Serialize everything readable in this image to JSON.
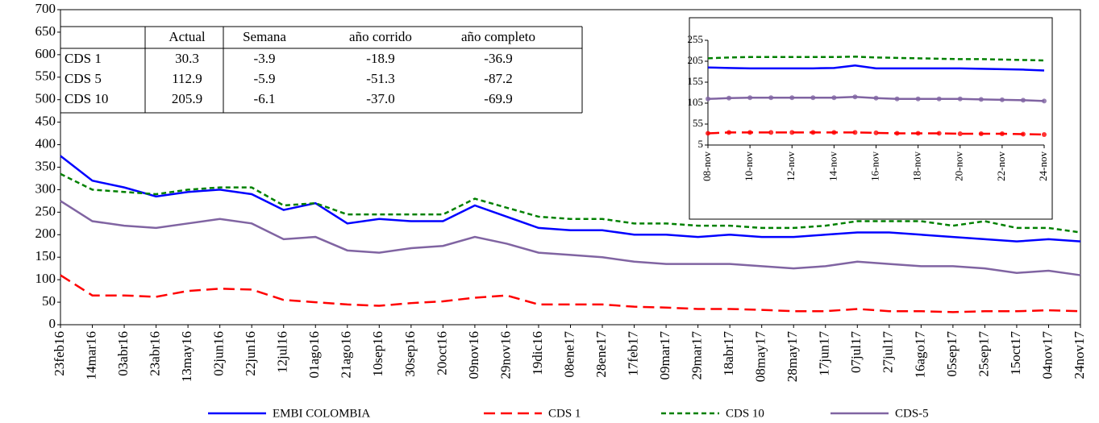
{
  "chart_data": [
    {
      "type": "line",
      "categories": [
        "23feb16",
        "14mar16",
        "03abr16",
        "23abr16",
        "13may16",
        "02jun16",
        "22jun16",
        "12jul16",
        "01ago16",
        "21ago16",
        "10sep16",
        "30sep16",
        "20oct16",
        "09nov16",
        "29nov16",
        "19dic16",
        "08ene17",
        "28ene17",
        "17feb17",
        "09mar17",
        "29mar17",
        "18abr17",
        "08may17",
        "28may17",
        "17jun17",
        "07jul17",
        "27jul17",
        "16ago17",
        "05sep17",
        "25sep17",
        "15oct17",
        "04nov17",
        "24nov17"
      ],
      "ylim": [
        0,
        700
      ],
      "yticks": [
        0,
        50,
        100,
        150,
        200,
        250,
        300,
        350,
        400,
        450,
        500,
        550,
        600,
        650,
        700
      ],
      "legend": "bottom",
      "series": [
        {
          "name": "EMBI COLOMBIA",
          "color": "#0000ff",
          "line_style": "solid",
          "values": [
            375,
            320,
            305,
            285,
            295,
            300,
            290,
            255,
            270,
            225,
            235,
            230,
            230,
            265,
            240,
            215,
            210,
            210,
            200,
            200,
            195,
            200,
            195,
            195,
            200,
            205,
            205,
            200,
            195,
            190,
            185,
            190,
            185
          ]
        },
        {
          "name": "CDS 1",
          "color": "#ff0000",
          "line_style": "long-dash",
          "values": [
            110,
            65,
            65,
            62,
            75,
            80,
            78,
            55,
            50,
            45,
            42,
            48,
            52,
            60,
            65,
            45,
            45,
            45,
            40,
            38,
            35,
            35,
            33,
            30,
            30,
            35,
            30,
            30,
            28,
            30,
            30,
            32,
            30
          ]
        },
        {
          "name": "CDS 10",
          "color": "#008000",
          "line_style": "short-dash",
          "values": [
            335,
            300,
            295,
            290,
            300,
            305,
            305,
            265,
            270,
            245,
            245,
            245,
            245,
            280,
            260,
            240,
            235,
            235,
            225,
            225,
            220,
            220,
            215,
            215,
            220,
            230,
            230,
            230,
            220,
            230,
            215,
            215,
            205
          ]
        },
        {
          "name": "CDS-5",
          "color": "#8064a2",
          "line_style": "solid",
          "values": [
            275,
            230,
            220,
            215,
            225,
            235,
            225,
            190,
            195,
            165,
            160,
            170,
            175,
            195,
            180,
            160,
            155,
            150,
            140,
            135,
            135,
            135,
            130,
            125,
            130,
            140,
            135,
            130,
            130,
            125,
            115,
            120,
            110
          ]
        }
      ]
    },
    {
      "type": "line",
      "categories": [
        "08-nov",
        null,
        "10-nov",
        null,
        "12-nov",
        null,
        "14-nov",
        null,
        "16-nov",
        null,
        "18-nov",
        null,
        "20-nov",
        null,
        "22-nov",
        null,
        "24-nov"
      ],
      "ylim": [
        5,
        255
      ],
      "yticks": [
        5,
        55,
        105,
        155,
        205,
        255
      ],
      "series": [
        {
          "color": "#0000ff",
          "line_style": "solid",
          "markers": false,
          "values": [
            190,
            189,
            188,
            188,
            188,
            188,
            189,
            195,
            188,
            188,
            188,
            188,
            188,
            187,
            186,
            185,
            183
          ]
        },
        {
          "color": "#008000",
          "line_style": "short-dash",
          "markers": false,
          "values": [
            212,
            214,
            215,
            215,
            215,
            215,
            215,
            216,
            214,
            213,
            212,
            211,
            210,
            210,
            209,
            208,
            207
          ]
        },
        {
          "color": "#8064a2",
          "line_style": "solid",
          "markers": true,
          "values": [
            115,
            117,
            118,
            118,
            118,
            118,
            118,
            120,
            117,
            115,
            115,
            115,
            115,
            114,
            113,
            112,
            110
          ]
        },
        {
          "color": "#ff0000",
          "line_style": "long-dash",
          "markers": true,
          "values": [
            33,
            35,
            35,
            35,
            35,
            35,
            35,
            35,
            34,
            33,
            33,
            33,
            32,
            32,
            32,
            31,
            30
          ]
        }
      ]
    }
  ],
  "table": {
    "header": [
      "Actual",
      "Semana",
      "año corrido",
      "año completo"
    ],
    "rows": [
      [
        "CDS 1",
        "30.3",
        "-3.9",
        "-18.9",
        "-36.9"
      ],
      [
        "CDS 5",
        "112.9",
        "-5.9",
        "-51.3",
        "-87.2"
      ],
      [
        "CDS 10",
        "205.9",
        "-6.1",
        "-37.0",
        "-69.9"
      ]
    ]
  }
}
